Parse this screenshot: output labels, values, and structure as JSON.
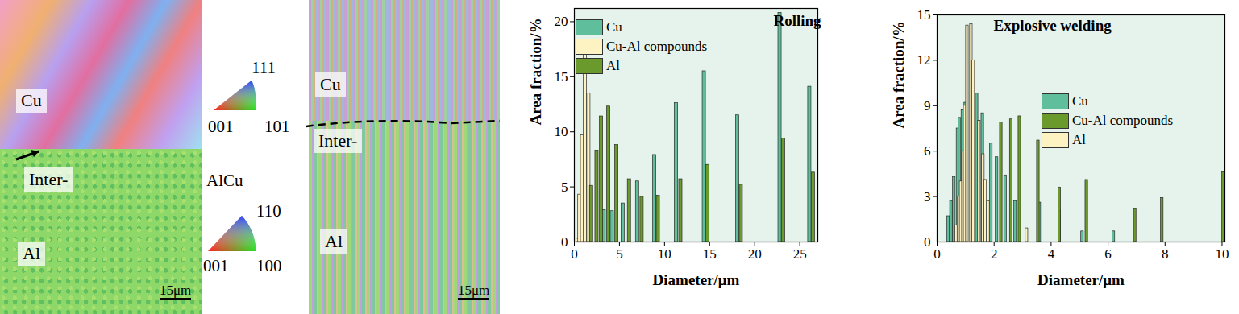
{
  "images": [
    {
      "labels": [
        "Cu",
        "Inter-",
        "Al"
      ],
      "scale_bar": "15μm"
    },
    {
      "labels": [
        "Cu",
        "Inter-",
        "Al"
      ],
      "scale_bar": "15μm"
    }
  ],
  "color_keys": [
    {
      "corners": [
        "111",
        "001",
        "101"
      ]
    },
    {
      "title": "AlCu",
      "corners": [
        "110",
        "001",
        "100"
      ]
    }
  ],
  "chart_data": [
    {
      "type": "bar",
      "title": "Rolling",
      "x_label": "Diameter/μm",
      "y_label": "Area fraction/%",
      "xlim": [
        0,
        27
      ],
      "xticks": [
        0,
        5,
        10,
        15,
        20,
        25
      ],
      "ylim": [
        0,
        21.2
      ],
      "yticks": [
        0,
        5,
        10,
        15,
        20
      ],
      "legend": "top-left",
      "series": [
        {
          "name": "Cu",
          "color": "#5fbf9c",
          "x": [
            3.3,
            4.2,
            5.4,
            7.0,
            8.9,
            11.3,
            14.4,
            18.1,
            22.8,
            26.1
          ],
          "values": [
            2.9,
            2.8,
            3.5,
            5.5,
            7.9,
            12.6,
            15.5,
            11.5,
            20.8,
            14.1
          ]
        },
        {
          "name": "Cu-Al compounds",
          "color": "#fdf2c2",
          "x": [
            0.4,
            0.6,
            0.9,
            1.2,
            1.6
          ],
          "values": [
            0.3,
            4.3,
            9.7,
            17.5,
            13.5
          ]
        },
        {
          "name": "Al",
          "color": "#6b9a2c",
          "x": [
            1.9,
            2.5,
            3.0,
            3.8,
            4.7,
            6.1,
            7.5,
            9.3,
            11.8,
            14.8,
            18.5,
            23.2,
            26.5
          ],
          "values": [
            5.1,
            8.3,
            11.4,
            12.3,
            8.8,
            5.7,
            4.1,
            4.2,
            5.7,
            7.0,
            5.2,
            9.4,
            6.3
          ]
        }
      ]
    },
    {
      "type": "bar",
      "title": "Explosive welding",
      "x_label": "Diameter/μm",
      "y_label": "Area fraction/%",
      "xlim": [
        0,
        10.1
      ],
      "xticks": [
        0,
        2,
        4,
        6,
        8,
        10
      ],
      "ylim": [
        0,
        15
      ],
      "yticks": [
        0,
        3,
        6,
        9,
        12,
        15
      ],
      "legend": "right",
      "series": [
        {
          "name": "Cu",
          "color": "#5fbf9c",
          "x": [
            0.4,
            0.5,
            0.6,
            0.73,
            0.8,
            0.9,
            1.0,
            1.4,
            1.6,
            1.9,
            2.1,
            2.4,
            2.75,
            3.6,
            4.3,
            5.1,
            6.2
          ],
          "values": [
            1.7,
            2.7,
            4.3,
            7.5,
            8.2,
            8.7,
            9.2,
            9.8,
            8.5,
            6.5,
            5.6,
            4.4,
            2.7,
            2.6,
            2.1,
            0.7,
            0.7
          ]
        },
        {
          "name": "Cu-Al compounds",
          "color": "#6b9a2c",
          "x": [
            2.25,
            2.6,
            2.9,
            3.55,
            4.3,
            5.25,
            6.95,
            7.9,
            10.05
          ],
          "values": [
            7.9,
            8.1,
            8.3,
            6.7,
            3.6,
            4.1,
            2.2,
            2.9,
            4.6
          ]
        },
        {
          "name": "Al",
          "color": "#fdf2c2",
          "x": [
            0.68,
            0.76,
            0.84,
            0.92,
            0.98,
            1.06,
            1.2,
            1.28,
            1.48,
            1.62,
            1.7,
            1.8,
            3.15
          ],
          "values": [
            1.1,
            3.0,
            4.0,
            6.0,
            9.0,
            14.3,
            14.4,
            12.0,
            8.0,
            5.8,
            4.1,
            2.7,
            0.9
          ]
        }
      ]
    }
  ]
}
